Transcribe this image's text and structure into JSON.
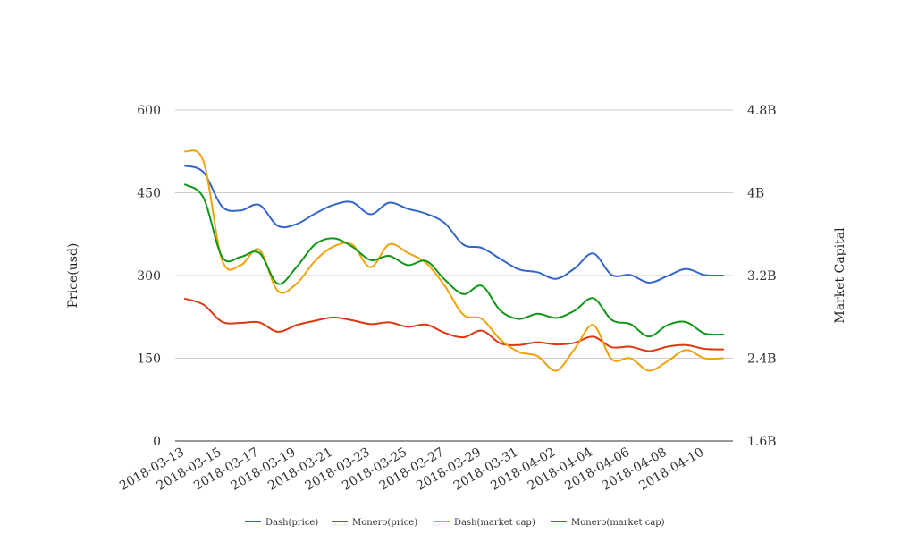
{
  "chart_data": {
    "type": "line",
    "title": "",
    "ylabel_left": "Price(usd)",
    "ylabel_right": "Market Capital",
    "ylim_left": [
      0,
      600
    ],
    "ylim_right": [
      1.6,
      4.8
    ],
    "yticks_left": [
      "0",
      "150",
      "300",
      "450",
      "600"
    ],
    "yticks_right": [
      "1.6B",
      "2.4B",
      "3.2B",
      "4B",
      "4.8B"
    ],
    "x_tick_labels": [
      "2018-03-13",
      "2018-03-15",
      "2018-03-17",
      "2018-03-19",
      "2018-03-21",
      "2018-03-23",
      "2018-03-25",
      "2018-03-27",
      "2018-03-29",
      "2018-03-31",
      "2018-04-02",
      "2018-04-04",
      "2018-04-06",
      "2018-04-08",
      "2018-04-10"
    ],
    "x": [
      "2018-03-13",
      "2018-03-14",
      "2018-03-15",
      "2018-03-16",
      "2018-03-17",
      "2018-03-18",
      "2018-03-19",
      "2018-03-20",
      "2018-03-21",
      "2018-03-22",
      "2018-03-23",
      "2018-03-24",
      "2018-03-25",
      "2018-03-26",
      "2018-03-27",
      "2018-03-28",
      "2018-03-29",
      "2018-03-30",
      "2018-03-31",
      "2018-04-01",
      "2018-04-02",
      "2018-04-03",
      "2018-04-04",
      "2018-04-05",
      "2018-04-06",
      "2018-04-07",
      "2018-04-08",
      "2018-04-09",
      "2018-04-10",
      "2018-04-11"
    ],
    "grid": true,
    "legend_position": "bottom",
    "series": [
      {
        "name": "Dash(price)",
        "axis": "left",
        "color": "#3366cc",
        "values": [
          499,
          487,
          425,
          418,
          428,
          390,
          393,
          412,
          428,
          433,
          411,
          432,
          421,
          412,
          395,
          356,
          350,
          330,
          311,
          306,
          294,
          313,
          340,
          301,
          301,
          287,
          299,
          312,
          301,
          300
        ]
      },
      {
        "name": "Monero(price)",
        "axis": "left",
        "color": "#dc3912",
        "values": [
          258,
          247,
          216,
          214,
          215,
          198,
          210,
          218,
          224,
          219,
          212,
          215,
          207,
          211,
          196,
          188,
          200,
          177,
          174,
          179,
          175,
          178,
          189,
          170,
          171,
          163,
          171,
          174,
          167,
          166
        ]
      },
      {
        "name": "Dash(market cap)",
        "axis": "right",
        "color": "#f0a30a",
        "values": [
          4.4,
          4.3,
          3.35,
          3.3,
          3.45,
          3.05,
          3.12,
          3.34,
          3.48,
          3.5,
          3.28,
          3.5,
          3.42,
          3.32,
          3.1,
          2.82,
          2.78,
          2.58,
          2.46,
          2.42,
          2.28,
          2.49,
          2.72,
          2.39,
          2.4,
          2.28,
          2.37,
          2.48,
          2.4,
          2.4
        ]
      },
      {
        "name": "Monero(market cap)",
        "axis": "right",
        "color": "#109618",
        "values": [
          4.08,
          3.95,
          3.38,
          3.38,
          3.42,
          3.12,
          3.28,
          3.5,
          3.56,
          3.48,
          3.35,
          3.39,
          3.3,
          3.34,
          3.16,
          3.02,
          3.1,
          2.86,
          2.78,
          2.83,
          2.79,
          2.86,
          2.98,
          2.77,
          2.73,
          2.61,
          2.72,
          2.75,
          2.64,
          2.63
        ]
      }
    ]
  }
}
